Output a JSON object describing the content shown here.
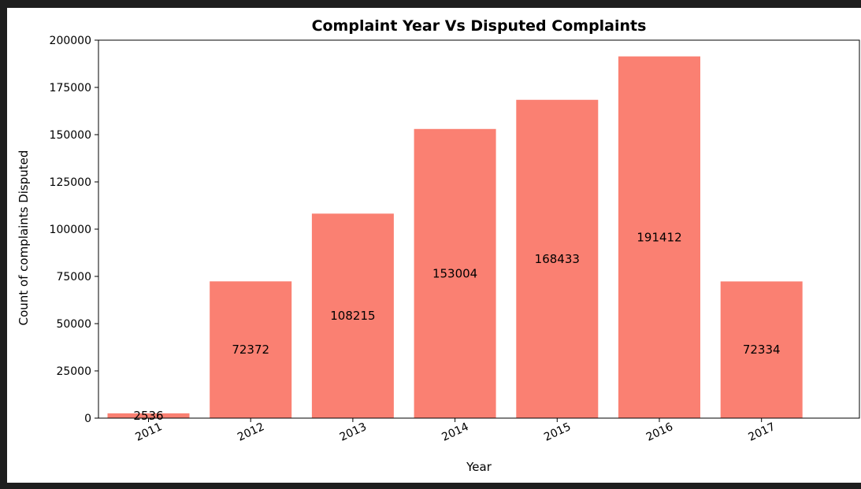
{
  "chart_data": {
    "type": "bar",
    "title": "Complaint Year Vs Disputed Complaints",
    "xlabel": "Year",
    "ylabel": "Count of complaints Disputed",
    "categories": [
      "2011",
      "2012",
      "2013",
      "2014",
      "2015",
      "2016",
      "2017"
    ],
    "values": [
      2536,
      72372,
      108215,
      153004,
      168433,
      191412,
      72334
    ],
    "ylim": [
      0,
      200000
    ],
    "yticks": [
      0,
      25000,
      50000,
      75000,
      100000,
      125000,
      150000,
      175000,
      200000
    ],
    "bar_color": "#fa8072",
    "grid": false,
    "x_tick_rotation": 25
  }
}
